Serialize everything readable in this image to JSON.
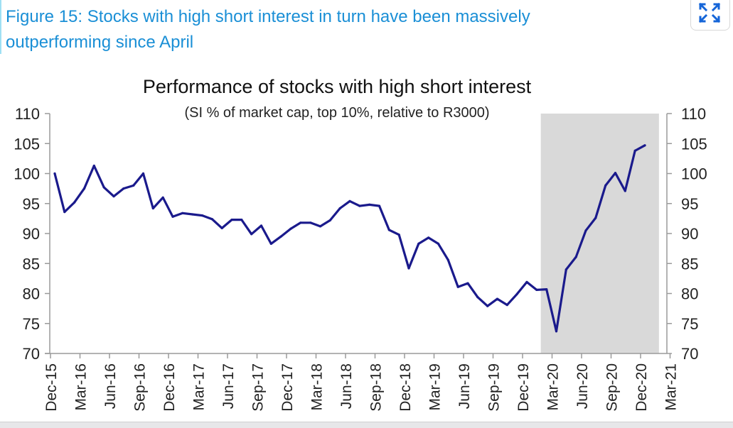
{
  "figure": {
    "title_line1": "Figure 15: Stocks with high short interest in turn have been massively",
    "title_line2": "outperforming since April",
    "title_color": "#1a8fd6"
  },
  "controls": {
    "expand_icon": "expand-arrows-icon",
    "expand_icon_color": "#1565d8"
  },
  "chart_data": {
    "type": "line",
    "title": "Performance of stocks with high short interest",
    "subtitle": "(SI % of market cap, top 10%, relative to R3000)",
    "xlabel": "",
    "ylabel": "",
    "ylim": [
      70,
      110
    ],
    "y_ticks": [
      "70",
      "75",
      "80",
      "85",
      "90",
      "95",
      "100",
      "105",
      "110"
    ],
    "y2_ticks": [
      "70",
      "75",
      "80",
      "85",
      "90",
      "95",
      "100",
      "105",
      "110"
    ],
    "x_tick_labels": [
      "Dec-15",
      "Mar-16",
      "Jun-16",
      "Sep-16",
      "Dec-16",
      "Mar-17",
      "Jun-17",
      "Sep-17",
      "Dec-17",
      "Mar-18",
      "Jun-18",
      "Sep-18",
      "Dec-18",
      "Mar-19",
      "Jun-19",
      "Sep-19",
      "Dec-19",
      "Mar-20",
      "Jun-20",
      "Sep-20",
      "Dec-20",
      "Mar-21"
    ],
    "grid": false,
    "line_color": "#1a1a8c",
    "shaded_region": {
      "from": "Feb-20",
      "to": "Jan-21",
      "color": "#d9d9d9"
    },
    "series": [
      {
        "name": "Stocks with high short interest",
        "x": [
          "Dec-15",
          "Jan-16",
          "Feb-16",
          "Mar-16",
          "Apr-16",
          "May-16",
          "Jun-16",
          "Jul-16",
          "Aug-16",
          "Sep-16",
          "Oct-16",
          "Nov-16",
          "Dec-16",
          "Jan-17",
          "Feb-17",
          "Mar-17",
          "Apr-17",
          "May-17",
          "Jun-17",
          "Jul-17",
          "Aug-17",
          "Sep-17",
          "Oct-17",
          "Nov-17",
          "Dec-17",
          "Jan-18",
          "Feb-18",
          "Mar-18",
          "Apr-18",
          "May-18",
          "Jun-18",
          "Jul-18",
          "Aug-18",
          "Sep-18",
          "Oct-18",
          "Nov-18",
          "Dec-18",
          "Jan-19",
          "Feb-19",
          "Mar-19",
          "Apr-19",
          "May-19",
          "Jun-19",
          "Jul-19",
          "Aug-19",
          "Sep-19",
          "Oct-19",
          "Nov-19",
          "Dec-19",
          "Jan-20",
          "Feb-20",
          "Mar-20",
          "Apr-20",
          "May-20",
          "Jun-20",
          "Jul-20",
          "Aug-20",
          "Sep-20",
          "Oct-20",
          "Nov-20",
          "Dec-20"
        ],
        "values": [
          100.0,
          93.6,
          95.2,
          97.5,
          101.3,
          97.7,
          96.2,
          97.5,
          98.0,
          100.0,
          94.2,
          96.0,
          92.8,
          93.4,
          93.2,
          93.0,
          92.4,
          90.9,
          92.3,
          92.3,
          89.9,
          91.3,
          88.3,
          89.5,
          90.8,
          91.8,
          91.8,
          91.2,
          92.2,
          94.2,
          95.4,
          94.6,
          94.8,
          94.6,
          90.6,
          89.8,
          84.2,
          88.3,
          89.3,
          88.3,
          85.6,
          81.1,
          81.7,
          79.4,
          77.9,
          79.1,
          78.1,
          79.9,
          81.9,
          80.6,
          80.7,
          73.7,
          84.0,
          86.1,
          90.5,
          92.6,
          98.0,
          100.1,
          97.1,
          103.8,
          104.7
        ]
      }
    ]
  }
}
